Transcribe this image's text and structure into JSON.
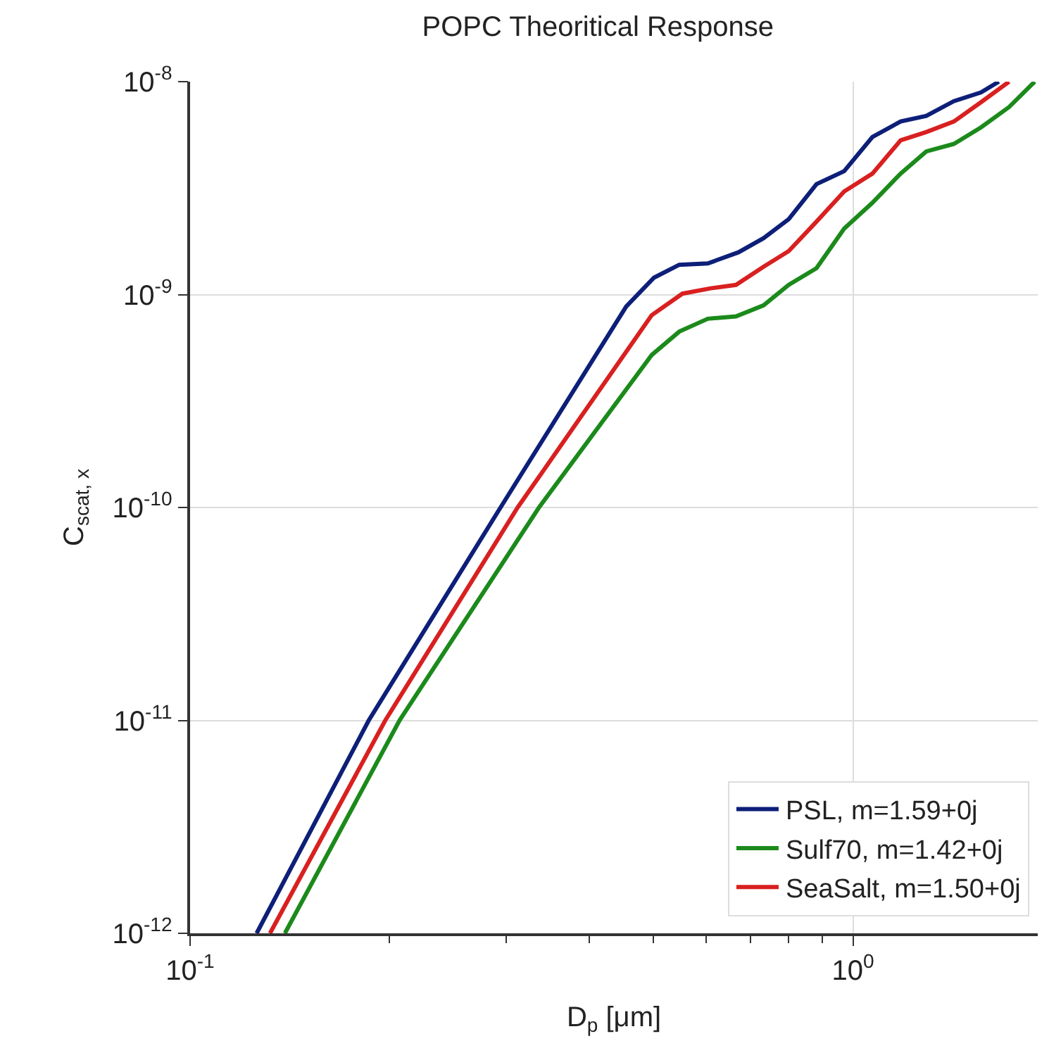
{
  "chart_data": {
    "type": "line",
    "title": "POPC Theoritical Response",
    "xlabel": "D$_{p}$ [μm]",
    "ylabel": "C$_{scat, x}$",
    "log": "xy",
    "grid": true,
    "legend": "bottom right",
    "line_style": "solid",
    "xlim": [
      0.1,
      1.9
    ],
    "ylim": [
      1e-12,
      1e-08
    ],
    "xticks": [
      {
        "value": 0.1,
        "label": "10$^{-1}$"
      },
      {
        "value": 0.2,
        "label": null
      },
      {
        "value": 0.3,
        "label": null
      },
      {
        "value": 0.4,
        "label": null
      },
      {
        "value": 0.5,
        "label": null
      },
      {
        "value": 0.6,
        "label": null
      },
      {
        "value": 0.7,
        "label": null
      },
      {
        "value": 0.8,
        "label": null
      },
      {
        "value": 0.9,
        "label": null
      },
      {
        "value": 1,
        "label": "10$^{0}$"
      }
    ],
    "yticks": [
      {
        "value": 1e-12,
        "label": "10$^{-12}$"
      },
      {
        "value": 1e-11,
        "label": "10$^{-11}$"
      },
      {
        "value": 1e-10,
        "label": "10$^{-10}$"
      },
      {
        "value": 1e-09,
        "label": "10$^{-9}$"
      },
      {
        "value": 1e-08,
        "label": "10$^{-8}$"
      }
    ],
    "series": [
      {
        "name": "PSL, m=1.59+0j",
        "color": "#0d1f78",
        "x": [
          0.126,
          0.186,
          0.294,
          0.455,
          0.501,
          0.547,
          0.604,
          0.672,
          0.733,
          0.8,
          0.881,
          0.97,
          1.07,
          1.18,
          1.29,
          1.42,
          1.56,
          1.66
        ],
        "values": [
          1e-12,
          1e-11,
          1e-10,
          8.8e-10,
          1.2e-09,
          1.38e-09,
          1.4e-09,
          1.58e-09,
          1.84e-09,
          2.26e-09,
          3.3e-09,
          3.8e-09,
          5.5e-09,
          6.5e-09,
          6.9e-09,
          8.1e-09,
          8.9e-09,
          1e-08
        ]
      },
      {
        "name": "Sulf70, m=1.42+0j",
        "color": "#1b8a1b",
        "x": [
          0.139,
          0.207,
          0.336,
          0.497,
          0.547,
          0.604,
          0.666,
          0.733,
          0.8,
          0.881,
          0.97,
          1.07,
          1.18,
          1.29,
          1.42,
          1.56,
          1.72,
          1.88
        ],
        "values": [
          1e-12,
          1e-11,
          1e-10,
          5.2e-10,
          6.7e-10,
          7.7e-10,
          7.9e-10,
          8.9e-10,
          1.11e-09,
          1.33e-09,
          2.04e-09,
          2.7e-09,
          3.7e-09,
          4.7e-09,
          5.1e-09,
          6.1e-09,
          7.6e-09,
          1e-08
        ]
      },
      {
        "name": "SeaSalt, m=1.50+0j",
        "color": "#d92020",
        "x": [
          0.132,
          0.197,
          0.312,
          0.497,
          0.553,
          0.61,
          0.666,
          0.733,
          0.8,
          0.881,
          0.97,
          1.07,
          1.18,
          1.29,
          1.42,
          1.56,
          1.72
        ],
        "values": [
          1e-12,
          1e-11,
          1e-10,
          8e-10,
          1.01e-09,
          1.07e-09,
          1.11e-09,
          1.35e-09,
          1.6e-09,
          2.2e-09,
          3.05e-09,
          3.7e-09,
          5.3e-09,
          5.8e-09,
          6.5e-09,
          8e-09,
          1e-08
        ]
      }
    ]
  }
}
